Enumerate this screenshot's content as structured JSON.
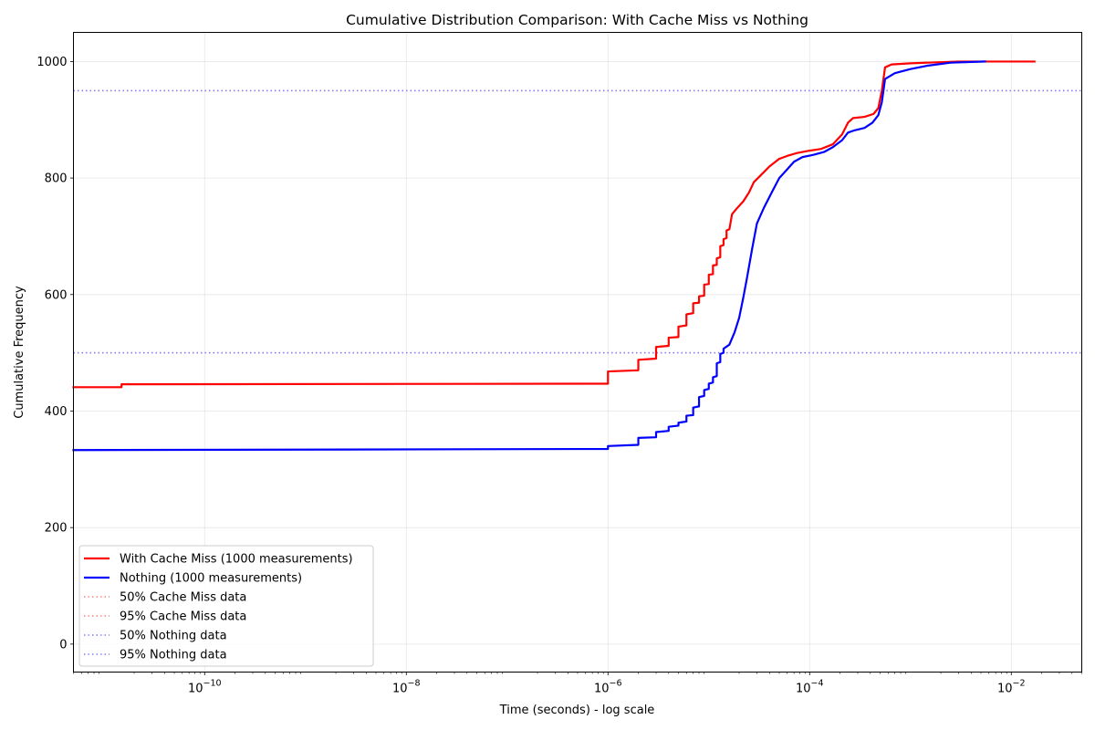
{
  "chart_data": {
    "type": "line",
    "title": "Cumulative Distribution Comparison: With Cache Miss vs Nothing",
    "xlabel": "Time (seconds) - log scale",
    "ylabel": "Cumulative Frequency",
    "xscale": "log",
    "xlim": [
      5e-12,
      0.05
    ],
    "ylim": [
      -48,
      1050
    ],
    "xticks": [
      {
        "value": 1e-10,
        "base": "10",
        "exp": "−10"
      },
      {
        "value": 1e-08,
        "base": "10",
        "exp": "−8"
      },
      {
        "value": 1e-06,
        "base": "10",
        "exp": "−6"
      },
      {
        "value": 0.0001,
        "base": "10",
        "exp": "−4"
      },
      {
        "value": 0.01,
        "base": "10",
        "exp": "−2"
      }
    ],
    "yticks": [
      0,
      200,
      400,
      600,
      800,
      1000
    ],
    "grid": true,
    "legend_position": "lower-left",
    "series": [
      {
        "name": "With Cache Miss (1000 measurements)",
        "color": "#ff0000",
        "style": "solid",
        "points": [
          [
            5e-12,
            441
          ],
          [
            1.5e-11,
            441
          ],
          [
            1.5e-11,
            446
          ],
          [
            1e-06,
            447
          ],
          [
            1e-06,
            468
          ],
          [
            2e-06,
            470
          ],
          [
            2e-06,
            488
          ],
          [
            3e-06,
            490
          ],
          [
            3e-06,
            510
          ],
          [
            4e-06,
            512
          ],
          [
            4e-06,
            526
          ],
          [
            5e-06,
            527
          ],
          [
            5e-06,
            545
          ],
          [
            6e-06,
            547
          ],
          [
            6e-06,
            566
          ],
          [
            7e-06,
            568
          ],
          [
            7e-06,
            585
          ],
          [
            8e-06,
            586
          ],
          [
            8e-06,
            597
          ],
          [
            9e-06,
            598
          ],
          [
            9e-06,
            617
          ],
          [
            1e-05,
            618
          ],
          [
            1e-05,
            634
          ],
          [
            1.1e-05,
            635
          ],
          [
            1.1e-05,
            650
          ],
          [
            1.2e-05,
            651
          ],
          [
            1.2e-05,
            662
          ],
          [
            1.3e-05,
            664
          ],
          [
            1.3e-05,
            683
          ],
          [
            1.4e-05,
            685
          ],
          [
            1.4e-05,
            695
          ],
          [
            1.5e-05,
            697
          ],
          [
            1.5e-05,
            710
          ],
          [
            1.6e-05,
            712
          ],
          [
            1.7e-05,
            738
          ],
          [
            1.9e-05,
            748
          ],
          [
            2.2e-05,
            760
          ],
          [
            2.5e-05,
            775
          ],
          [
            2.8e-05,
            793
          ],
          [
            3.2e-05,
            803
          ],
          [
            4e-05,
            820
          ],
          [
            5e-05,
            833
          ],
          [
            6e-05,
            838
          ],
          [
            7.5e-05,
            843
          ],
          [
            0.0001,
            847
          ],
          [
            0.00013,
            850
          ],
          [
            0.00017,
            858
          ],
          [
            0.00021,
            875
          ],
          [
            0.00024,
            895
          ],
          [
            0.00027,
            903
          ],
          [
            0.00035,
            905
          ],
          [
            0.00043,
            910
          ],
          [
            0.00048,
            920
          ],
          [
            0.00052,
            950
          ],
          [
            0.00056,
            990
          ],
          [
            0.00065,
            995
          ],
          [
            0.001,
            997
          ],
          [
            0.003,
            1000
          ],
          [
            0.017,
            1000
          ]
        ]
      },
      {
        "name": "Nothing (1000 measurements)",
        "color": "#0000ff",
        "style": "solid",
        "points": [
          [
            5e-12,
            333
          ],
          [
            1e-06,
            335
          ],
          [
            1e-06,
            340
          ],
          [
            2e-06,
            342
          ],
          [
            2e-06,
            354
          ],
          [
            3e-06,
            355
          ],
          [
            3e-06,
            364
          ],
          [
            4e-06,
            366
          ],
          [
            4e-06,
            373
          ],
          [
            5e-06,
            375
          ],
          [
            5e-06,
            380
          ],
          [
            6e-06,
            382
          ],
          [
            6e-06,
            392
          ],
          [
            7e-06,
            393
          ],
          [
            7e-06,
            406
          ],
          [
            8e-06,
            408
          ],
          [
            8e-06,
            424
          ],
          [
            9e-06,
            426
          ],
          [
            9e-06,
            436
          ],
          [
            1e-05,
            438
          ],
          [
            1e-05,
            447
          ],
          [
            1.1e-05,
            449
          ],
          [
            1.1e-05,
            458
          ],
          [
            1.2e-05,
            460
          ],
          [
            1.2e-05,
            482
          ],
          [
            1.3e-05,
            484
          ],
          [
            1.3e-05,
            498
          ],
          [
            1.4e-05,
            500
          ],
          [
            1.4e-05,
            507
          ],
          [
            1.6e-05,
            514
          ],
          [
            1.8e-05,
            535
          ],
          [
            2e-05,
            560
          ],
          [
            2.2e-05,
            595
          ],
          [
            2.4e-05,
            630
          ],
          [
            2.7e-05,
            680
          ],
          [
            3e-05,
            722
          ],
          [
            3.5e-05,
            748
          ],
          [
            4.2e-05,
            775
          ],
          [
            5e-05,
            800
          ],
          [
            6e-05,
            815
          ],
          [
            7e-05,
            828
          ],
          [
            8.5e-05,
            836
          ],
          [
            0.00011,
            840
          ],
          [
            0.00014,
            845
          ],
          [
            0.00017,
            853
          ],
          [
            0.00021,
            865
          ],
          [
            0.00024,
            878
          ],
          [
            0.00028,
            882
          ],
          [
            0.00035,
            886
          ],
          [
            0.00042,
            895
          ],
          [
            0.00048,
            908
          ],
          [
            0.00052,
            930
          ],
          [
            0.00056,
            970
          ],
          [
            0.0007,
            980
          ],
          [
            0.001,
            987
          ],
          [
            0.0015,
            993
          ],
          [
            0.0025,
            998
          ],
          [
            0.0055,
            1000
          ]
        ]
      },
      {
        "name": "50% Cache Miss data",
        "color": "#ff7f7f",
        "style": "dotted",
        "hline": 500
      },
      {
        "name": "95% Cache Miss data",
        "color": "#ff7f7f",
        "style": "dotted",
        "hline": 950
      },
      {
        "name": "50% Nothing data",
        "color": "#7f7fff",
        "style": "dotted",
        "hline": 500
      },
      {
        "name": "95% Nothing data",
        "color": "#7f7fff",
        "style": "dotted",
        "hline": 950
      }
    ]
  }
}
